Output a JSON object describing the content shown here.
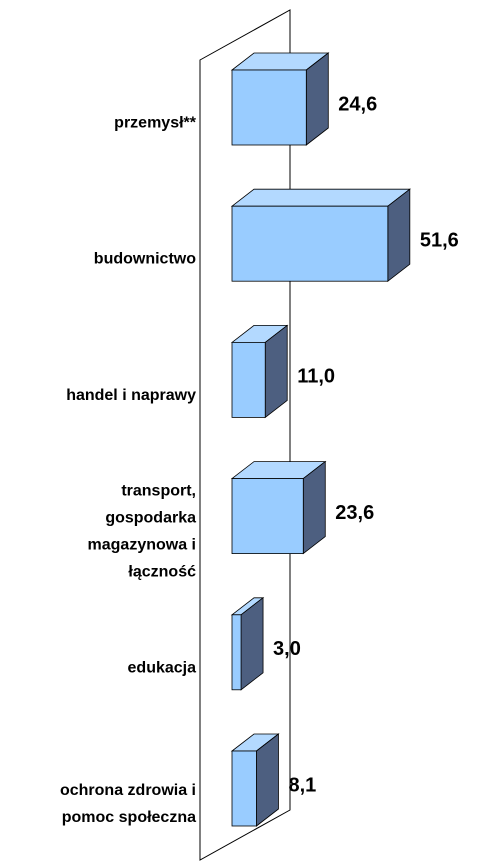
{
  "chart_data": {
    "type": "bar3d",
    "categories": [
      [
        "przemysł**"
      ],
      [
        "budownictwo"
      ],
      [
        "handel i naprawy"
      ],
      [
        "transport,",
        "gospodarka",
        "magazynowa i",
        "łączność"
      ],
      [
        "edukacja"
      ],
      [
        "ochrona zdrowia i",
        "pomoc społeczna"
      ]
    ],
    "values": [
      24.6,
      51.6,
      11.0,
      23.6,
      3.0,
      8.1
    ],
    "value_labels": [
      "24,6",
      "51,6",
      "11,0",
      "23,6",
      "3,0",
      "8,1"
    ],
    "colors": {
      "front": "#99ccff",
      "top": "#b3d9ff",
      "side": "#4d5f80"
    }
  }
}
